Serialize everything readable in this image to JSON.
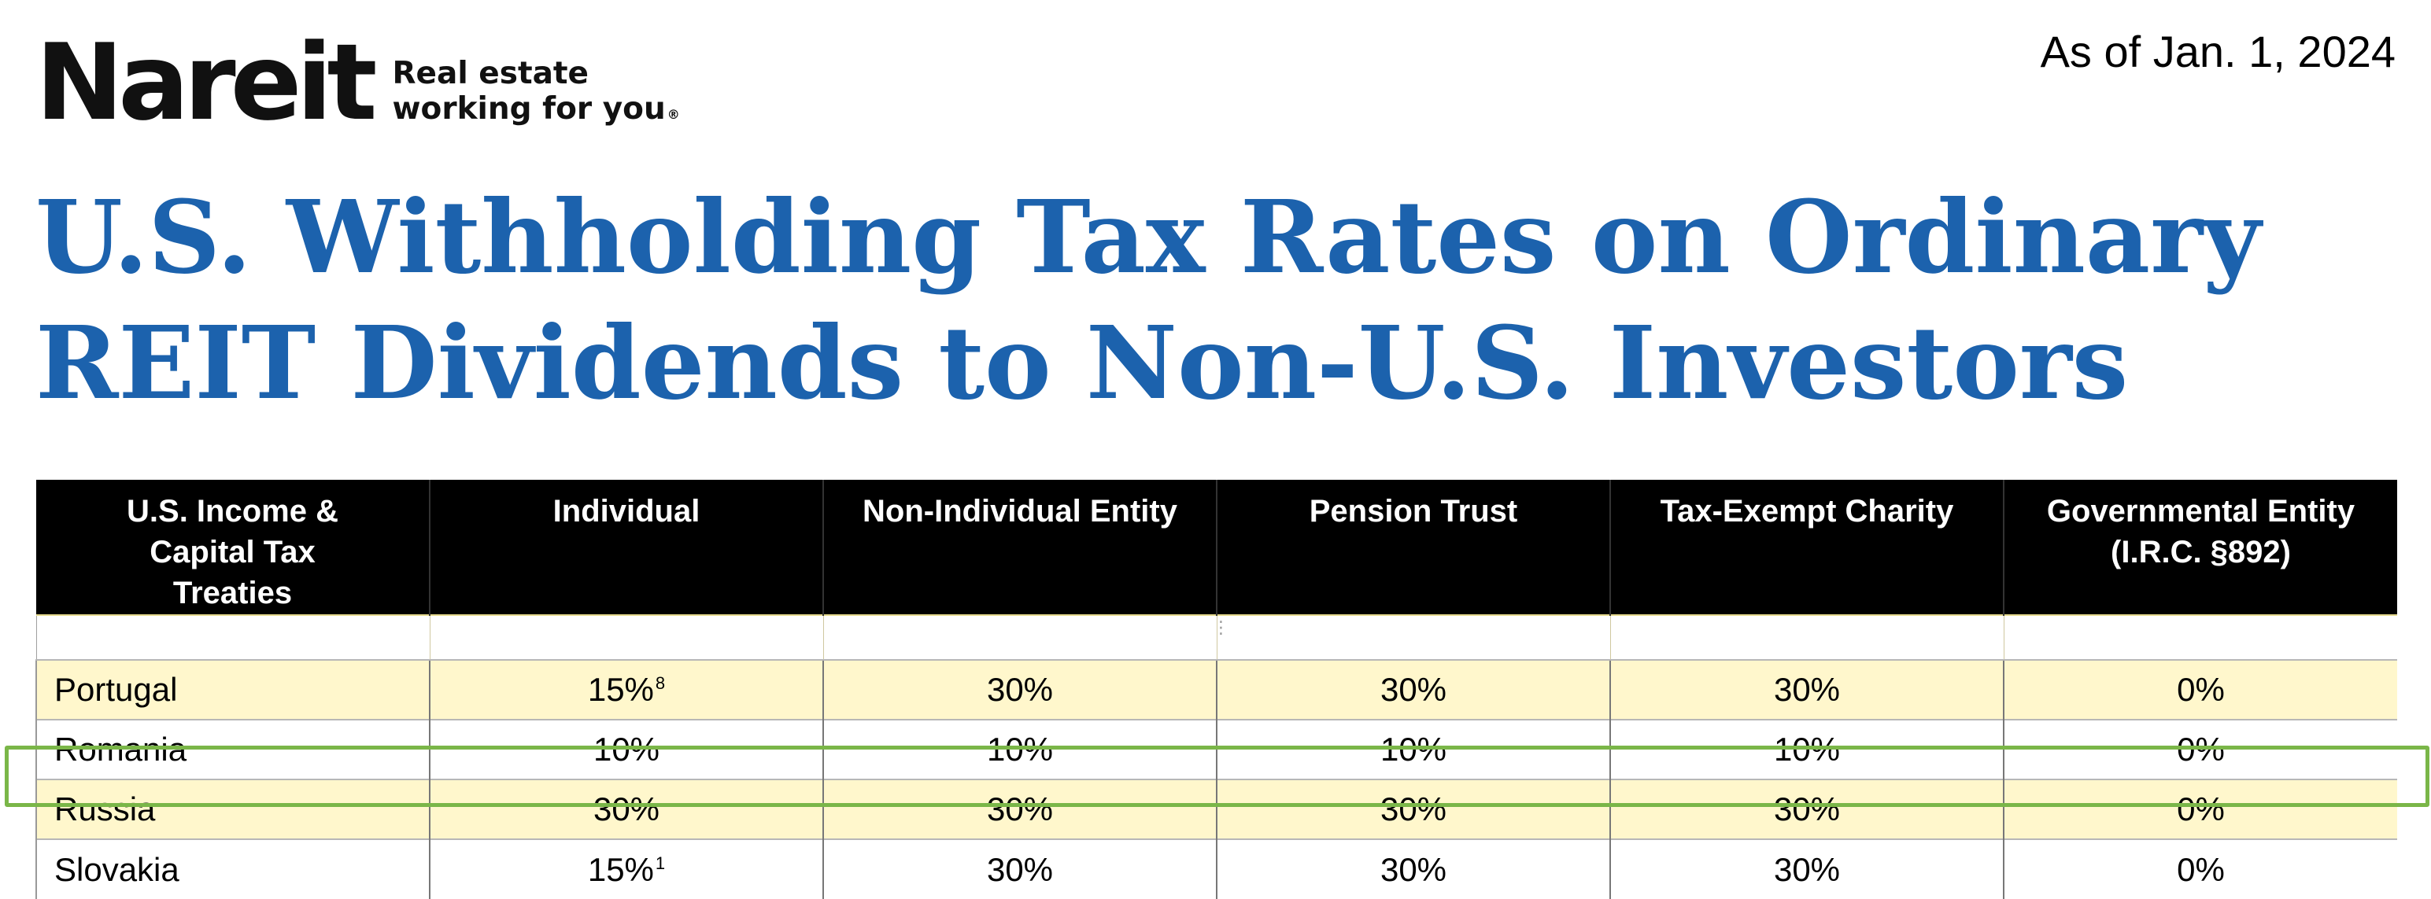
{
  "logo": {
    "wordmark": "Nareit",
    "tagline_line1": "Real estate",
    "tagline_line2": "working for you",
    "registered_mark": "®"
  },
  "as_of": "As of Jan. 1, 2024",
  "title": "U.S. Withholding Tax Rates on Ordinary REIT Dividends to Non-U.S. Investors",
  "table": {
    "headers": [
      "U.S. Income & Capital Tax Treaties",
      "Individual",
      "Non-Individual Entity",
      "Pension Trust",
      "Tax-Exempt Charity",
      "Governmental Entity (I.R.C. §892)"
    ],
    "rows": [
      {
        "country": "Portugal",
        "individual": "15%",
        "individual_footnote": "8",
        "non_individual": "30%",
        "pension_trust": "30%",
        "tax_exempt_charity": "30%",
        "governmental": "0%"
      },
      {
        "country": "Romania",
        "individual": "10%",
        "individual_footnote": "",
        "non_individual": "10%",
        "pension_trust": "10%",
        "tax_exempt_charity": "10%",
        "governmental": "0%"
      },
      {
        "country": "Russia",
        "individual": "30%",
        "individual_footnote": "",
        "non_individual": "30%",
        "pension_trust": "30%",
        "tax_exempt_charity": "30%",
        "governmental": "0%"
      },
      {
        "country": "Slovakia",
        "individual": "15%",
        "individual_footnote": "1",
        "non_individual": "30%",
        "pension_trust": "30%",
        "tax_exempt_charity": "30%",
        "governmental": "0%"
      }
    ]
  },
  "highlighted_row": "Russia",
  "colors": {
    "title": "#1c62ad",
    "header_bg": "#000000",
    "alt_row_bg": "#fff7cc",
    "highlight_border": "#7ab648"
  }
}
